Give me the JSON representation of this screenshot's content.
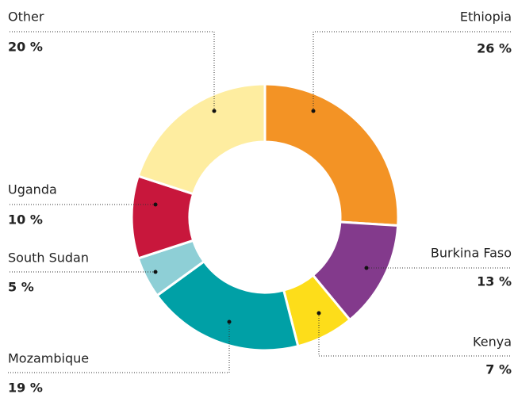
{
  "chart_data": {
    "type": "donut",
    "categories": [
      "Ethiopia",
      "Burkina Faso",
      "Kenya",
      "Mozambique",
      "South Sudan",
      "Uganda",
      "Other"
    ],
    "values": [
      26,
      13,
      7,
      19,
      5,
      10,
      20
    ],
    "value_labels": [
      "26 %",
      "13 %",
      "7 %",
      "19 %",
      "5 %",
      "10 %",
      "20 %"
    ],
    "colors": [
      "#f39325",
      "#833a8c",
      "#fddd1a",
      "#00a0a6",
      "#8ecfd6",
      "#c8173c",
      "#feeda0"
    ]
  }
}
